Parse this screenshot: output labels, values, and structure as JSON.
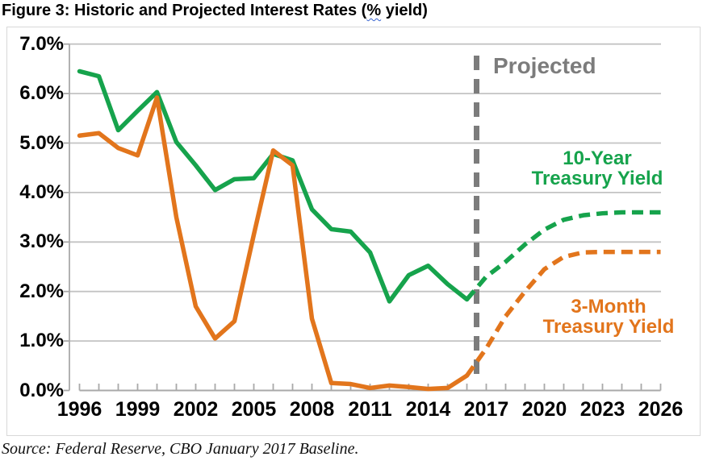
{
  "title": {
    "prefix": "Figure 3: Historic and Projected Interest Rates (",
    "spellcheck_word": "%",
    "suffix": " yield)"
  },
  "source": "Source: Federal Reserve, CBO January 2017 Baseline.",
  "colors": {
    "green": "#16a34c",
    "orange": "#e2751c",
    "projected_gray": "#7c7c7c",
    "gridline": "#c3c3c3",
    "axis": "#a9a9a9",
    "chart_border": "#d8d8d8",
    "spellcheck_squiggle": "#3a66d1"
  },
  "chart_data": {
    "type": "line",
    "title": "Figure 3: Historic and Projected Interest Rates (% yield)",
    "xlabel": "",
    "ylabel": "",
    "grid": true,
    "legend_position": "inline-labels",
    "ylim": [
      0,
      7
    ],
    "ytick_values": [
      7,
      6,
      5,
      4,
      3,
      2,
      1,
      0
    ],
    "ytick_labels": [
      "7.0%",
      "6.0%",
      "5.0%",
      "4.0%",
      "3.0%",
      "2.0%",
      "1.0%",
      "0.0%"
    ],
    "xticks_labeled": [
      1996,
      1999,
      2002,
      2005,
      2008,
      2011,
      2014,
      2017,
      2020,
      2023,
      2026
    ],
    "x": [
      1996,
      1997,
      1998,
      1999,
      2000,
      2001,
      2002,
      2003,
      2004,
      2005,
      2006,
      2007,
      2008,
      2009,
      2010,
      2011,
      2012,
      2013,
      2014,
      2015,
      2016,
      2017,
      2018,
      2019,
      2020,
      2021,
      2022,
      2023,
      2024,
      2025,
      2026
    ],
    "projection_starts_at": 2016,
    "series": [
      {
        "name": "10-Year Treasury Yield",
        "color": "#16a34c",
        "values": [
          6.45,
          6.35,
          5.26,
          5.65,
          6.03,
          5.02,
          4.55,
          4.05,
          4.27,
          4.29,
          4.78,
          4.65,
          3.66,
          3.26,
          3.21,
          2.79,
          1.8,
          2.33,
          2.52,
          2.15,
          1.84,
          2.3,
          2.6,
          2.95,
          3.25,
          3.45,
          3.54,
          3.58,
          3.6,
          3.6,
          3.6
        ]
      },
      {
        "name": "3-Month Treasury Yield",
        "color": "#e2751c",
        "values": [
          5.15,
          5.2,
          4.9,
          4.75,
          5.92,
          3.5,
          1.7,
          1.05,
          1.4,
          3.15,
          4.85,
          4.55,
          1.45,
          0.15,
          0.13,
          0.05,
          0.1,
          0.07,
          0.03,
          0.05,
          0.3,
          0.85,
          1.5,
          2.0,
          2.45,
          2.7,
          2.79,
          2.8,
          2.8,
          2.8,
          2.8
        ]
      }
    ],
    "annotations": {
      "projected_label": "Projected",
      "projected_divider_x": 2016.5,
      "ten_year_label": [
        "10-Year",
        "Treasury Yield"
      ],
      "three_month_label": [
        "3-Month",
        "Treasury Yield"
      ]
    }
  }
}
